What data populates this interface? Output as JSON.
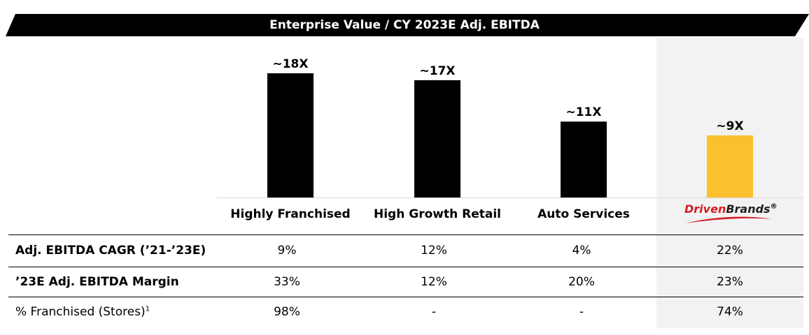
{
  "title": "Enterprise Value / CY 2023E Adj. EBITDA",
  "colors": {
    "banner": "#000000",
    "bar": "#000000",
    "highlight_bar": "#fbc02d",
    "highlight_bg": "#f2f2f2",
    "brand_red": "#d51e26"
  },
  "chart_data": {
    "type": "bar",
    "title": "Enterprise Value / CY 2023E Adj. EBITDA",
    "categories": [
      "Highly Franchised",
      "High Growth Retail",
      "Auto Services",
      "Driven Brands"
    ],
    "values": [
      18,
      17,
      11,
      9
    ],
    "data_labels": [
      "~18X",
      "~17X",
      "~11X",
      "~9X"
    ],
    "highlight_index": 3,
    "ylim": [
      0,
      18
    ],
    "grid": false,
    "legend": "none",
    "xlabel": "",
    "ylabel": ""
  },
  "brand_logo": {
    "part1": "Driven",
    "part2": "Brands",
    "mark": "®"
  },
  "table": {
    "rows": [
      {
        "label": "Adj. EBITDA CAGR (’21-’23E)",
        "values": [
          "9%",
          "12%",
          "4%",
          "22%"
        ]
      },
      {
        "label": "’23E Adj. EBITDA Margin",
        "values": [
          "33%",
          "12%",
          "20%",
          "23%"
        ]
      },
      {
        "label": "% Franchised (Stores)",
        "sup": "1",
        "values": [
          "98%",
          "-",
          "-",
          "74%"
        ]
      }
    ]
  }
}
